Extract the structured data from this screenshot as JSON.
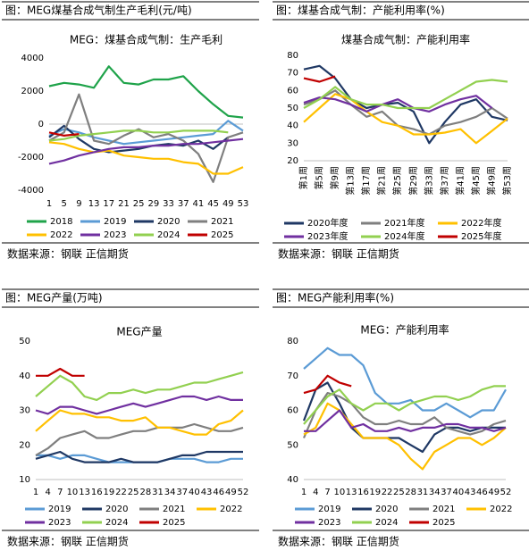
{
  "panels": [
    {
      "header": "图：MEG煤基合成气制生产毛利(元/吨)",
      "source": "数据来源：钢联    正信期货"
    },
    {
      "header": "图：煤基合成气制：产能利用率(%)",
      "source": "数据来源：钢联    正信期货"
    },
    {
      "header": "图：MEG产量(万吨)",
      "source": "数据来源：钢联    正信期货"
    },
    {
      "header": "图：MEG产能利用率(%)",
      "source": "数据来源：钢联    正信期货"
    }
  ],
  "chart_data": [
    {
      "type": "line",
      "title": "MEG：煤基合成气制：生产毛利",
      "x": [
        1,
        5,
        9,
        13,
        17,
        21,
        25,
        29,
        33,
        37,
        41,
        45,
        49,
        53
      ],
      "xticks": [
        1,
        5,
        9,
        13,
        17,
        21,
        25,
        29,
        33,
        37,
        41,
        45,
        49,
        53
      ],
      "ylim": [
        -4000,
        4000
      ],
      "yticks": [
        -4000,
        -2000,
        0,
        2000,
        4000
      ],
      "series": [
        {
          "name": "2018",
          "color": "#1fa34a",
          "values": [
            2300,
            2500,
            2400,
            2200,
            3500,
            2500,
            2400,
            2700,
            2700,
            2900,
            2000,
            1200,
            500,
            400
          ]
        },
        {
          "name": "2019",
          "color": "#5b9bd5",
          "values": [
            -700,
            -300,
            -500,
            -800,
            -1000,
            -1200,
            -1100,
            -1000,
            -900,
            -800,
            -700,
            -600,
            200,
            -400
          ]
        },
        {
          "name": "2020",
          "color": "#1f3864",
          "values": [
            -800,
            -100,
            -900,
            -1500,
            -1700,
            -1600,
            -1500,
            -1300,
            -1200,
            -1300,
            -1000,
            -1500,
            -800,
            null
          ]
        },
        {
          "name": "2021",
          "color": "#7f7f7f",
          "values": [
            -1000,
            -500,
            1800,
            -1000,
            -1200,
            -700,
            -300,
            -800,
            -600,
            -1000,
            -1800,
            -3500,
            -800,
            -500
          ]
        },
        {
          "name": "2022",
          "color": "#ffc000",
          "values": [
            -1100,
            -1200,
            -1500,
            -1700,
            -1600,
            -1900,
            -2000,
            -2100,
            -2100,
            -2300,
            -2400,
            -3000,
            -3000,
            -2600
          ]
        },
        {
          "name": "2023",
          "color": "#7030a0",
          "values": [
            -2400,
            -2200,
            -1900,
            -1700,
            -1500,
            -1400,
            -1400,
            -1300,
            -1300,
            -1200,
            -1200,
            -1100,
            -1000,
            -900
          ]
        },
        {
          "name": "2024",
          "color": "#92d050",
          "values": [
            -1000,
            -900,
            -700,
            -600,
            -500,
            -400,
            -400,
            -500,
            -500,
            -400,
            -400,
            -400,
            -500,
            null
          ]
        },
        {
          "name": "2025",
          "color": "#c00000",
          "values": [
            -500,
            -700,
            -600,
            null,
            null,
            null,
            null,
            null,
            null,
            null,
            null,
            null,
            null,
            null
          ]
        }
      ]
    },
    {
      "type": "line",
      "title": "煤基合成气制：产能利用率",
      "x": [
        1,
        5,
        9,
        13,
        17,
        21,
        25,
        29,
        33,
        37,
        41,
        45,
        49,
        53
      ],
      "xticks": [
        {
          "value": 1,
          "label": "第1周"
        },
        {
          "value": 5,
          "label": "第5周"
        },
        {
          "value": 9,
          "label": "第9周"
        },
        {
          "value": 13,
          "label": "第13周"
        },
        {
          "value": 17,
          "label": "第17周"
        },
        {
          "value": 21,
          "label": "第21周"
        },
        {
          "value": 25,
          "label": "第25周"
        },
        {
          "value": 29,
          "label": "第29周"
        },
        {
          "value": 33,
          "label": "第33周"
        },
        {
          "value": 37,
          "label": "第37周"
        },
        {
          "value": 41,
          "label": "第41周"
        },
        {
          "value": 45,
          "label": "第45周"
        },
        {
          "value": 49,
          "label": "第49周"
        },
        {
          "value": 53,
          "label": "第53周"
        }
      ],
      "ylim": [
        20,
        80
      ],
      "yticks": [
        20,
        30,
        40,
        50,
        60,
        70,
        80
      ],
      "series": [
        {
          "name": "2020年度",
          "color": "#1f3864",
          "values": [
            72,
            74,
            67,
            55,
            50,
            52,
            53,
            48,
            30,
            42,
            52,
            55,
            45,
            43
          ]
        },
        {
          "name": "2021年度",
          "color": "#7f7f7f",
          "values": [
            52,
            55,
            60,
            52,
            45,
            48,
            40,
            38,
            35,
            40,
            42,
            45,
            50,
            44
          ]
        },
        {
          "name": "2022年度",
          "color": "#ffc000",
          "values": [
            42,
            50,
            58,
            55,
            48,
            42,
            40,
            35,
            35,
            36,
            38,
            30,
            37,
            44
          ]
        },
        {
          "name": "2023年度",
          "color": "#7030a0",
          "values": [
            53,
            56,
            55,
            52,
            48,
            52,
            55,
            50,
            48,
            52,
            55,
            57,
            50,
            null
          ]
        },
        {
          "name": "2024年度",
          "color": "#92d050",
          "values": [
            50,
            55,
            62,
            55,
            52,
            52,
            50,
            50,
            50,
            55,
            60,
            65,
            66,
            65
          ]
        },
        {
          "name": "2025年度",
          "color": "#c00000",
          "values": [
            67,
            65,
            68,
            null,
            null,
            null,
            null,
            null,
            null,
            null,
            null,
            null,
            null,
            null
          ]
        }
      ]
    },
    {
      "type": "line",
      "title": "MEG产量",
      "x": [
        1,
        4,
        7,
        10,
        13,
        16,
        19,
        22,
        25,
        28,
        31,
        34,
        37,
        40,
        43,
        46,
        49,
        52
      ],
      "xticks": [
        1,
        4,
        7,
        10,
        13,
        16,
        19,
        22,
        25,
        28,
        31,
        34,
        37,
        40,
        43,
        46,
        49,
        52
      ],
      "ylim": [
        10,
        50
      ],
      "yticks": [
        10,
        20,
        30,
        40,
        50
      ],
      "series": [
        {
          "name": "2019",
          "color": "#5b9bd5",
          "values": [
            17,
            17,
            16,
            17,
            17,
            16,
            15,
            15,
            15,
            15,
            15,
            16,
            16,
            16,
            15,
            15,
            16,
            16
          ]
        },
        {
          "name": "2020",
          "color": "#1f3864",
          "values": [
            16,
            17,
            18,
            16,
            15,
            15,
            15,
            16,
            15,
            15,
            15,
            16,
            17,
            17,
            18,
            18,
            18,
            18
          ]
        },
        {
          "name": "2021",
          "color": "#7f7f7f",
          "values": [
            17,
            19,
            22,
            23,
            24,
            22,
            22,
            23,
            24,
            24,
            25,
            25,
            25,
            26,
            25,
            24,
            24,
            25
          ]
        },
        {
          "name": "2022",
          "color": "#ffc000",
          "values": [
            24,
            27,
            30,
            29,
            29,
            28,
            28,
            27,
            27,
            28,
            25,
            25,
            24,
            23,
            23,
            26,
            27,
            30
          ]
        },
        {
          "name": "2023",
          "color": "#7030a0",
          "values": [
            30,
            29,
            31,
            31,
            30,
            29,
            30,
            31,
            32,
            31,
            32,
            33,
            34,
            34,
            33,
            34,
            33,
            33
          ]
        },
        {
          "name": "2024",
          "color": "#92d050",
          "values": [
            34,
            37,
            40,
            38,
            34,
            33,
            35,
            35,
            36,
            35,
            36,
            36,
            37,
            38,
            38,
            39,
            40,
            41
          ]
        },
        {
          "name": "2025",
          "color": "#c00000",
          "values": [
            40,
            40,
            42,
            40,
            40,
            null,
            null,
            null,
            null,
            null,
            null,
            null,
            null,
            null,
            null,
            null,
            null,
            null
          ]
        }
      ]
    },
    {
      "type": "line",
      "title": "MEG：产能利用率",
      "x": [
        1,
        4,
        7,
        10,
        13,
        16,
        19,
        22,
        25,
        28,
        31,
        34,
        37,
        40,
        43,
        46,
        49,
        52
      ],
      "xticks": [
        1,
        4,
        7,
        10,
        13,
        16,
        19,
        22,
        25,
        28,
        31,
        34,
        37,
        40,
        43,
        46,
        49,
        52
      ],
      "ylim": [
        40,
        80
      ],
      "yticks": [
        40,
        50,
        60,
        70,
        80
      ],
      "series": [
        {
          "name": "2019",
          "color": "#5b9bd5",
          "values": [
            72,
            75,
            78,
            76,
            76,
            73,
            65,
            62,
            62,
            63,
            60,
            60,
            62,
            60,
            58,
            60,
            60,
            66
          ]
        },
        {
          "name": "2020",
          "color": "#1f3864",
          "values": [
            57,
            66,
            68,
            62,
            55,
            52,
            52,
            52,
            52,
            50,
            48,
            53,
            55,
            55,
            54,
            55,
            55,
            55
          ]
        },
        {
          "name": "2021",
          "color": "#7f7f7f",
          "values": [
            52,
            60,
            65,
            64,
            62,
            58,
            56,
            56,
            57,
            56,
            56,
            58,
            55,
            54,
            53,
            54,
            56,
            57
          ]
        },
        {
          "name": "2022",
          "color": "#ffc000",
          "values": [
            53,
            55,
            62,
            60,
            56,
            52,
            52,
            52,
            50,
            46,
            43,
            48,
            50,
            52,
            52,
            50,
            52,
            55
          ]
        },
        {
          "name": "2023",
          "color": "#7030a0",
          "values": [
            54,
            54,
            57,
            60,
            55,
            56,
            54,
            54,
            55,
            54,
            55,
            55,
            56,
            56,
            55,
            55,
            54,
            55
          ]
        },
        {
          "name": "2024",
          "color": "#92d050",
          "values": [
            56,
            60,
            64,
            66,
            62,
            60,
            62,
            62,
            60,
            62,
            63,
            64,
            64,
            63,
            64,
            66,
            67,
            67
          ]
        },
        {
          "name": "2025",
          "color": "#c00000",
          "values": [
            65,
            66,
            70,
            68,
            67,
            null,
            null,
            null,
            null,
            null,
            null,
            null,
            null,
            null,
            null,
            null,
            null,
            null
          ]
        }
      ]
    }
  ]
}
